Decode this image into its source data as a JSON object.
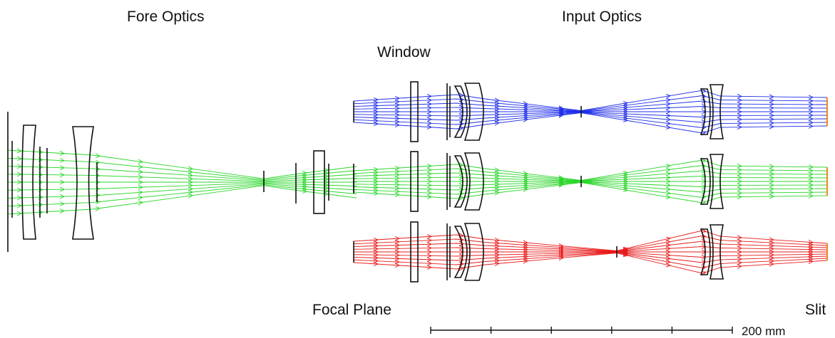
{
  "labels": {
    "fore_optics": "Fore Optics",
    "input_optics": "Input Optics",
    "window": "Window",
    "focal_plane": "Focal Plane",
    "slit": "Slit"
  },
  "scale_bar": {
    "text": "200 mm",
    "divisions": 5
  },
  "colors": {
    "channel_blue": "#1f2fe8",
    "channel_green": "#2ad62a",
    "channel_red": "#e81a1a",
    "slit_mark": "#f08a1a",
    "optics_outline": "#111111"
  },
  "channels": [
    {
      "name": "blue",
      "color_key": "channel_blue"
    },
    {
      "name": "green",
      "color_key": "channel_green"
    },
    {
      "name": "red",
      "color_key": "channel_red"
    }
  ]
}
